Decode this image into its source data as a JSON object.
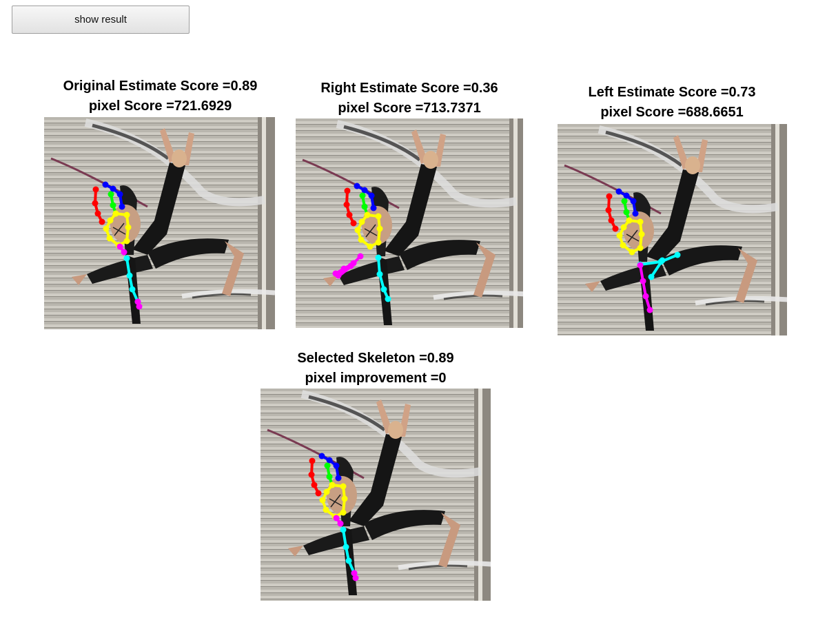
{
  "toolbar": {
    "show_result_label": "show result"
  },
  "panels": [
    {
      "title_line1": "Original Estimate Score =0.89",
      "title_line2": "pixel Score =721.6929",
      "image_icon": "dancer-pose-photo"
    },
    {
      "title_line1": "Right Estimate Score =0.36",
      "title_line2": "pixel Score =713.7371",
      "image_icon": "dancer-pose-photo"
    },
    {
      "title_line1": "Left Estimate Score =0.73",
      "title_line2": "pixel Score =688.6651",
      "image_icon": "dancer-pose-photo"
    },
    {
      "title_line1": "Selected Skeleton =0.89",
      "title_line2": "pixel improvement =0",
      "image_icon": "dancer-pose-photo"
    }
  ],
  "skeleton_colors": {
    "head": "#0000ff",
    "neck": "#00ff00",
    "right_arm": "#ff0000",
    "torso": "#ffff00",
    "right_leg": "#ff00ff",
    "left_leg": "#00ffff"
  }
}
